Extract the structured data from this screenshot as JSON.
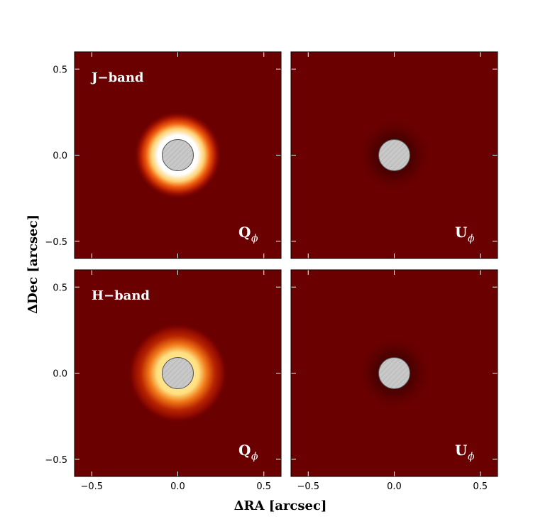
{
  "figure": {
    "xlabel": "ΔRA [arcsec]",
    "ylabel": "ΔDec [arcsec]"
  },
  "chart_data": [
    {
      "type": "image",
      "title": "J−band",
      "label": "Q",
      "label_sub": "ϕ",
      "xlim": [
        -0.6,
        0.6
      ],
      "ylim": [
        -0.6,
        0.6
      ],
      "yticks": [
        {
          "value": -0.5,
          "label": "−0.5"
        },
        {
          "value": 0,
          "label": "0.0"
        },
        0.5
      ]
    },
    {
      "type": "image",
      "label": "U",
      "label_sub": "ϕ",
      "xlim": [
        -0.6,
        0.6
      ],
      "ylim": [
        -0.6,
        0.6
      ]
    },
    {
      "type": "image",
      "title": "H−band",
      "label": "Q",
      "label_sub": "ϕ",
      "xlim": [
        -0.6,
        0.6
      ],
      "ylim": [
        -0.6,
        0.6
      ],
      "xticks": [
        {
          "value": -0.5,
          "label": "−0.5"
        },
        {
          "value": 0,
          "label": "0.0"
        },
        0.5
      ],
      "yticks": [
        {
          "value": -0.5,
          "label": "−0.5"
        },
        {
          "value": 0,
          "label": "0.0"
        },
        0.5
      ]
    },
    {
      "type": "image",
      "label": "U",
      "label_sub": "ϕ",
      "xlim": [
        -0.6,
        0.6
      ],
      "ylim": [
        -0.6,
        0.6
      ],
      "xticks": [
        {
          "value": -0.5,
          "label": "−0.5"
        },
        {
          "value": 0,
          "label": "0.0"
        },
        0.5
      ]
    }
  ]
}
